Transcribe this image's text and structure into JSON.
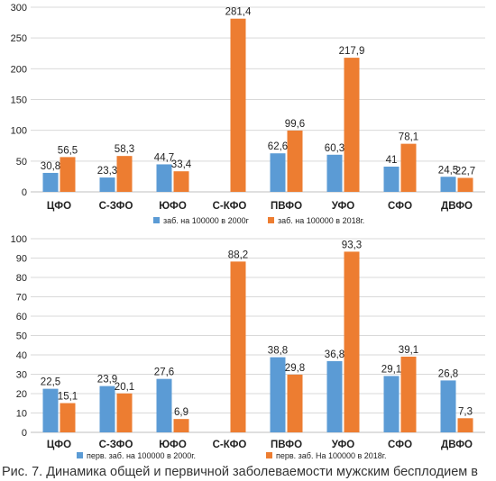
{
  "caption": "Рис. 7. Динамика общей и первичной заболеваемости мужским бесплодием в",
  "colors": {
    "series_2000": "#5b9bd5",
    "series_2018": "#ed7d31",
    "grid": "#d9d9d9",
    "axis": "#bfbfbf"
  },
  "chart_data": [
    {
      "type": "bar",
      "categories": [
        "ЦФО",
        "С-ЗФО",
        "ЮФО",
        "С-КФО",
        "ПВФО",
        "УФО",
        "СФО",
        "ДВФО"
      ],
      "series": [
        {
          "name": "заб. на 100000  в 2000г",
          "values": [
            30.8,
            23.3,
            44.7,
            null,
            62.6,
            60.3,
            41,
            24.5
          ]
        },
        {
          "name": "заб. на 100000 в 2018г.",
          "values": [
            56.5,
            58.3,
            33.4,
            281.4,
            99.6,
            217.9,
            78.1,
            22.7
          ]
        }
      ],
      "data_labels": [
        [
          "30,8",
          "23,3",
          "44,7",
          "",
          "62,6",
          "60,3",
          "41",
          "24,5"
        ],
        [
          "56,5",
          "58,3",
          "33,4",
          "281,4",
          "99,6",
          "217,9",
          "78,1",
          "22,7"
        ]
      ],
      "yticks": [
        "0",
        "50",
        "100",
        "150",
        "200",
        "250",
        "300"
      ],
      "ylim": [
        0,
        300
      ],
      "grid": true,
      "legend_position": "bottom"
    },
    {
      "type": "bar",
      "categories": [
        "ЦФО",
        "С-ЗФО",
        "ЮФО",
        "С-КФО",
        "ПВФО",
        "УФО",
        "СФО",
        "ДВФО"
      ],
      "series": [
        {
          "name": "перв. заб. на 100000 в 2000г.",
          "values": [
            22.5,
            23.9,
            27.6,
            null,
            38.8,
            36.8,
            29.1,
            26.8
          ]
        },
        {
          "name": "перв. заб.  На 100000 в 2018г.",
          "values": [
            15.1,
            20.1,
            6.9,
            88.2,
            29.8,
            93.3,
            39.1,
            7.3
          ]
        }
      ],
      "data_labels": [
        [
          "22,5",
          "23,9",
          "27,6",
          "",
          "38,8",
          "36,8",
          "29,1",
          "26,8"
        ],
        [
          "15,1",
          "20,1",
          "6,9",
          "88,2",
          "29,8",
          "93,3",
          "39,1",
          "7,3"
        ]
      ],
      "yticks": [
        "0",
        "10",
        "20",
        "30",
        "40",
        "50",
        "60",
        "70",
        "80",
        "90",
        "100"
      ],
      "ylim": [
        0,
        100
      ],
      "grid": true,
      "legend_position": "bottom"
    }
  ]
}
